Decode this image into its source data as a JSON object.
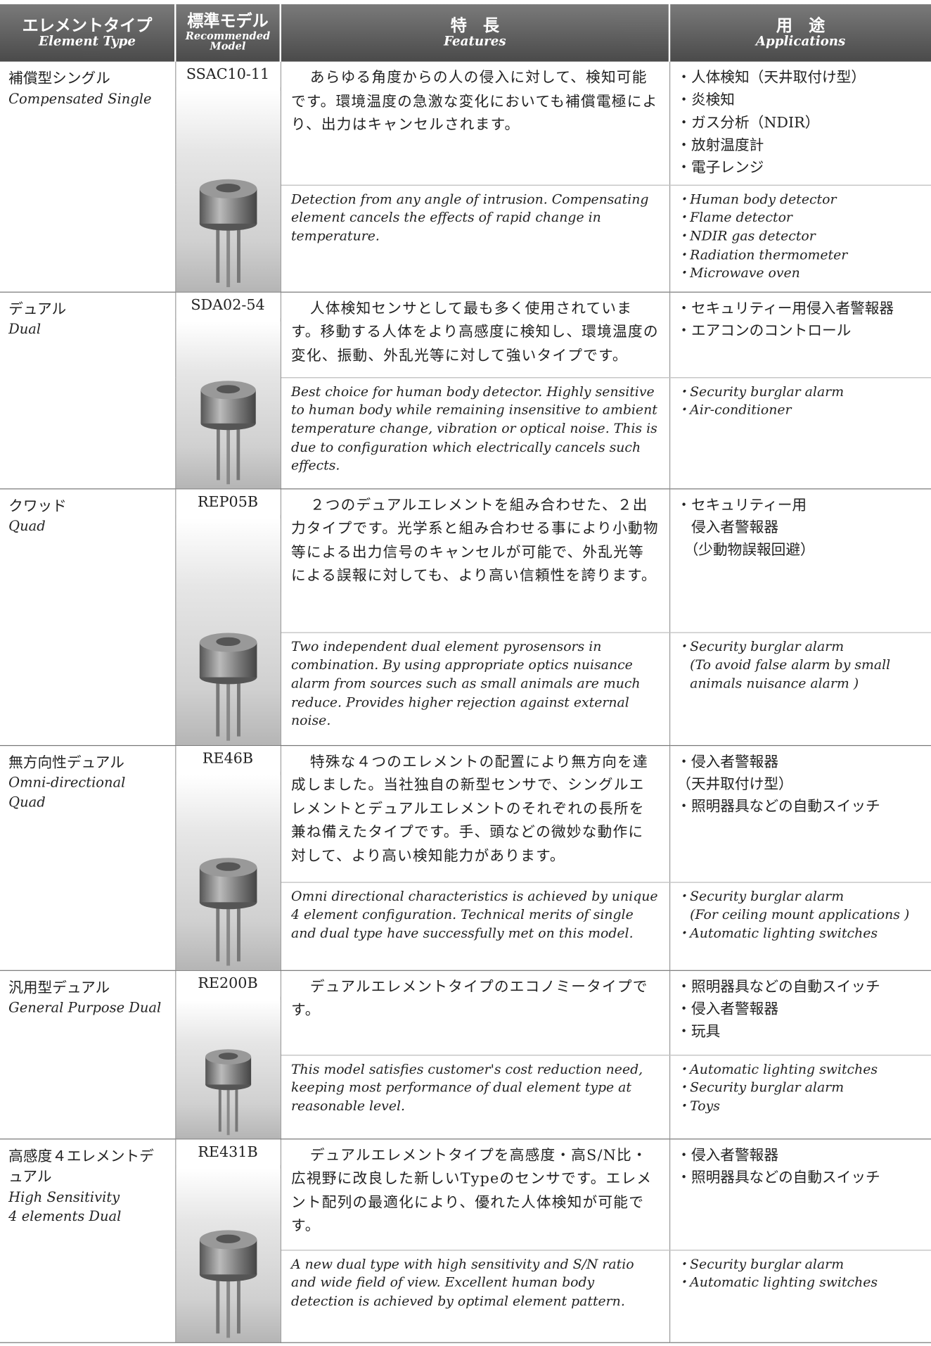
{
  "header": {
    "element_type": {
      "ja": "エレメントタイプ",
      "en": "Element Type"
    },
    "model": {
      "ja": "標準モデル",
      "en": [
        "Recommended",
        "Model"
      ]
    },
    "features": {
      "ja": "特　長",
      "en": "Features"
    },
    "applications": {
      "ja": "用　途",
      "en": "Applications"
    }
  },
  "rows": [
    {
      "type_ja": "補償型シングル",
      "type_en": [
        "Compensated Single"
      ],
      "model": "SSAC10-11",
      "features_ja": "あらゆる角度からの人の侵入に対して、検知可能です。環境温度の急激な変化においても補償電極により、出力はキャンセルされます。",
      "applications_ja": [
        "・人体検知（天井取付け型）",
        "・炎検知",
        "・ガス分析（NDIR）",
        "・放射温度計",
        "・電子レンジ"
      ],
      "features_en": "Detection from any angle of intrusion. Compensating element cancels the effects of rapid change in temperature.",
      "applications_en": [
        "・Human body detector",
        "・Flame detector",
        "・NDIR gas detector",
        "・Radiation thermometer",
        "・Microwave oven"
      ]
    },
    {
      "type_ja": "デュアル",
      "type_en": [
        "Dual"
      ],
      "model": "SDA02-54",
      "features_ja": "人体検知センサとして最も多く使用されています。移動する人体をより高感度に検知し、環境温度の変化、振動、外乱光等に対して強いタイプです。",
      "applications_ja": [
        "・セキュリティー用侵入者警報器",
        "・エアコンのコントロール"
      ],
      "features_en": "Best choice for human body detector. Highly sensitive to human body while remaining insensitive to ambient temperature change, vibration or optical noise. This is due to configuration which electrically cancels such effects.",
      "applications_en": [
        "・Security burglar alarm",
        "・Air-conditioner"
      ]
    },
    {
      "type_ja": "クワッド",
      "type_en": [
        "Quad"
      ],
      "model": "REP05B",
      "features_ja": "２つのデュアルエレメントを組み合わせた、２出力タイプです。光学系と組み合わせる事により小動物等による出力信号のキャンセルが可能で、外乱光等による誤報に対しても、より高い信頼性を誇ります。",
      "applications_ja": [
        "・セキュリティー用",
        "　侵入者警報器",
        "　（少動物誤報回避）"
      ],
      "features_en": "Two independent dual element pyrosensors in combination. By using appropriate optics nuisance alarm from sources such as small animals are much reduce. Provides higher rejection against external noise.",
      "applications_en": [
        "・Security burglar alarm",
        "　(To avoid false alarm by small",
        "　animals nuisance alarm )"
      ]
    },
    {
      "type_ja": "無方向性デュアル",
      "type_en": [
        "Omni-directional Quad"
      ],
      "model": "RE46B",
      "features_ja": "特殊な４つのエレメントの配置により無方向を達成しました。当社独自の新型センサで、シングルエレメントとデュアルエレメントのそれぞれの長所を兼ね備えたタイプです。手、頭などの微妙な動作に対して、より高い検知能力があります。",
      "applications_ja": [
        "・侵入者警報器",
        "（天井取付け型）",
        "・照明器具などの自動スイッチ"
      ],
      "features_en": "Omni directional characteristics is achieved by unique 4 element configuration. Technical merits of single and dual type have successfully met on this model.",
      "applications_en": [
        "・Security burglar alarm",
        "　(For ceiling mount applications )",
        "・Automatic lighting switches"
      ]
    },
    {
      "type_ja": "汎用型デュアル",
      "type_en": [
        "General Purpose Dual"
      ],
      "model": "RE200B",
      "features_ja": "デュアルエレメントタイプのエコノミータイプです。",
      "applications_ja": [
        "・照明器具などの自動スイッチ",
        "・侵入者警報器",
        "・玩具"
      ],
      "features_en": "This model satisfies customer's cost reduction need, keeping most performance of dual element type at reasonable level.",
      "applications_en": [
        "・Automatic lighting switches",
        "・Security burglar alarm",
        "・Toys"
      ]
    },
    {
      "type_ja": "高感度４エレメントデュアル",
      "type_en": [
        "High Sensitivity",
        "4 elements Dual"
      ],
      "model": "RE431B",
      "features_ja": "デュアルエレメントタイプを高感度・高S/N比・広視野に改良した新しいTypeのセンサです。エレメント配列の最適化により、優れた人体検知が可能です。",
      "applications_ja": [
        "・侵入者警報器",
        "・照明器具などの自動スイッチ"
      ],
      "features_en": "A new dual type with high sensitivity and S/N ratio and wide field of view. Excellent human body detection is achieved by optimal element pattern.",
      "applications_en": [
        "・Security burglar alarm",
        "・Automatic lighting switches"
      ]
    }
  ]
}
